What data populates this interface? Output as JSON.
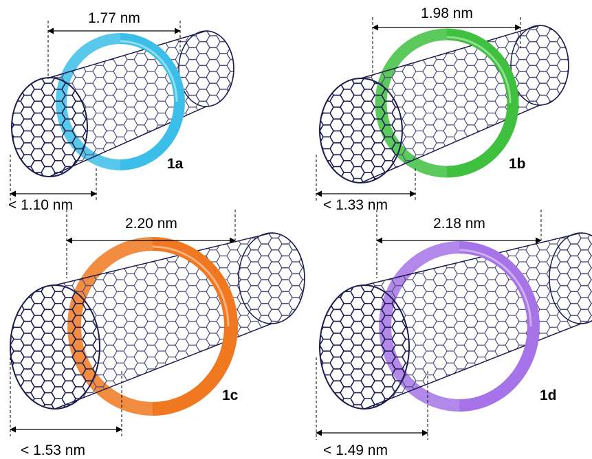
{
  "panels": [
    {
      "label": "1a",
      "outer": "1.77 nm",
      "inner": "< 1.10 nm"
    },
    {
      "label": "1b",
      "outer": "1.98 nm",
      "inner": "< 1.33 nm"
    },
    {
      "label": "1c",
      "outer": "2.20 nm",
      "inner": "< 1.53 nm"
    },
    {
      "label": "1d",
      "outer": "2.18 nm",
      "inner": "< 1.49 nm"
    }
  ]
}
